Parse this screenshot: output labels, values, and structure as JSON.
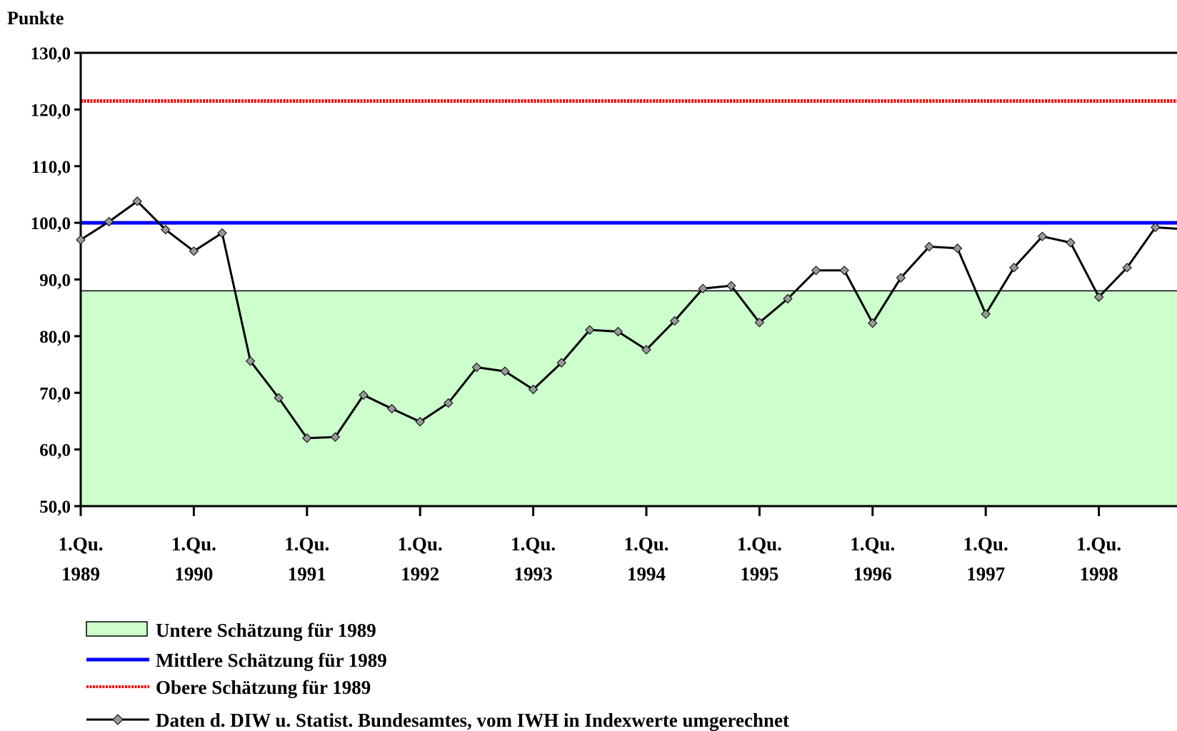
{
  "colors": {
    "lower_band_fill": "#ccffcc",
    "middle_line": "#0000ff",
    "upper_line": "#ff0000",
    "data_line": "#000000",
    "marker_fill": "#999999"
  },
  "chart_data": {
    "type": "line",
    "ylabel": "Punkte",
    "ylim": [
      50,
      130
    ],
    "y_ticks": [
      "50,0",
      "60,0",
      "70,0",
      "80,0",
      "90,0",
      "100,0",
      "110,0",
      "120,0",
      "130,0"
    ],
    "x_ticks": [
      {
        "line1": "1.Qu.",
        "line2": "1989"
      },
      {
        "line1": "1.Qu.",
        "line2": "1990"
      },
      {
        "line1": "1.Qu.",
        "line2": "1991"
      },
      {
        "line1": "1.Qu.",
        "line2": "1992"
      },
      {
        "line1": "1.Qu.",
        "line2": "1993"
      },
      {
        "line1": "1.Qu.",
        "line2": "1994"
      },
      {
        "line1": "1.Qu.",
        "line2": "1995"
      },
      {
        "line1": "1.Qu.",
        "line2": "1996"
      },
      {
        "line1": "1.Qu.",
        "line2": "1997"
      },
      {
        "line1": "1.Qu.",
        "line2": "1998"
      }
    ],
    "grid": false,
    "legend_position": "bottom",
    "reference": {
      "lower_estimate": 88.0,
      "middle_estimate": 100.0,
      "upper_estimate": 121.5
    },
    "series": [
      {
        "name": "Daten d. DIW u. Statist. Bundesamtes, vom IWH in Indexwerte umgerechnet",
        "x": [
          "1989 Q1",
          "1989 Q2",
          "1989 Q3",
          "1989 Q4",
          "1990 Q1",
          "1990 Q2",
          "1990 Q3",
          "1990 Q4",
          "1991 Q1",
          "1991 Q2",
          "1991 Q3",
          "1991 Q4",
          "1992 Q1",
          "1992 Q2",
          "1992 Q3",
          "1992 Q4",
          "1993 Q1",
          "1993 Q2",
          "1993 Q3",
          "1993 Q4",
          "1994 Q1",
          "1994 Q2",
          "1994 Q3",
          "1994 Q4",
          "1995 Q1",
          "1995 Q2",
          "1995 Q3",
          "1995 Q4",
          "1996 Q1",
          "1996 Q2",
          "1996 Q3",
          "1996 Q4",
          "1997 Q1",
          "1997 Q2",
          "1997 Q3",
          "1997 Q4",
          "1998 Q1",
          "1998 Q2",
          "1998 Q3",
          "1998 Q4"
        ],
        "values": [
          97.0,
          100.2,
          103.8,
          98.8,
          95.0,
          98.2,
          75.6,
          69.1,
          62.0,
          62.2,
          69.6,
          67.2,
          64.9,
          68.2,
          74.5,
          73.8,
          70.6,
          75.3,
          81.1,
          80.8,
          77.6,
          82.7,
          88.4,
          88.9,
          82.4,
          86.6,
          91.6,
          91.6,
          82.3,
          90.3,
          95.8,
          95.5,
          83.9,
          92.1,
          97.6,
          96.5,
          86.9,
          92.1,
          99.2,
          98.9
        ]
      }
    ]
  },
  "legend": {
    "lower": "Untere Schätzung für 1989",
    "middle": "Mittlere Schätzung für 1989",
    "upper": "Obere Schätzung für 1989",
    "data": "Daten d. DIW u. Statist. Bundesamtes, vom IWH in Indexwerte umgerechnet"
  }
}
